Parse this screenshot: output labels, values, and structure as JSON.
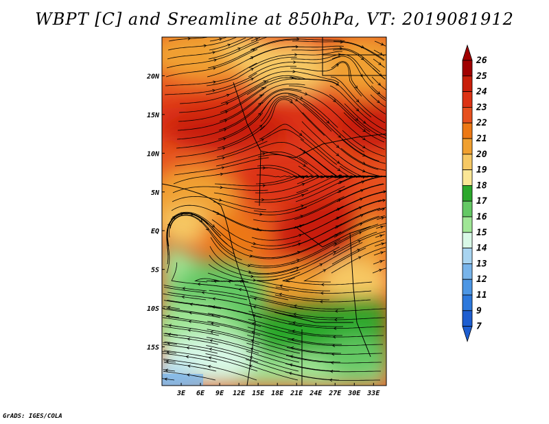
{
  "title": "WBPT [C] and Sreamline at 850hPa, VT: 2019081912",
  "credit": "GrADS: IGES/COLA",
  "map": {
    "lon_range": [
      0,
      35
    ],
    "lat_range": [
      -20,
      25
    ],
    "x_ticks": [
      "3E",
      "6E",
      "9E",
      "12E",
      "15E",
      "18E",
      "21E",
      "24E",
      "27E",
      "30E",
      "33E"
    ],
    "x_tick_values": [
      3,
      6,
      9,
      12,
      15,
      18,
      21,
      24,
      27,
      30,
      33
    ],
    "y_ticks": [
      "20N",
      "15N",
      "10N",
      "5N",
      "EQ",
      "5S",
      "10S",
      "15S"
    ],
    "y_tick_values": [
      20,
      15,
      10,
      5,
      0,
      -5,
      -10,
      -15
    ]
  },
  "colorbar": {
    "labels": [
      "26",
      "25",
      "24",
      "23",
      "22",
      "21",
      "20",
      "19",
      "18",
      "17",
      "16",
      "15",
      "14",
      "13",
      "12",
      "11",
      "9",
      "7"
    ],
    "colors": [
      "#a00000",
      "#c81e0a",
      "#dc3214",
      "#e6501e",
      "#ec7814",
      "#f0a030",
      "#f6c864",
      "#fae696",
      "#2ca82c",
      "#64c864",
      "#a0e696",
      "#d8f8e6",
      "#a8d4f0",
      "#78b4ea",
      "#4c96e4",
      "#2c78dc",
      "#1e5ed0"
    ],
    "top_arrow_color": "#a00000",
    "bottom_arrow_color": "#1e5ed0"
  },
  "colors": {
    "background": "#ffffff",
    "streamline": "#000000"
  }
}
